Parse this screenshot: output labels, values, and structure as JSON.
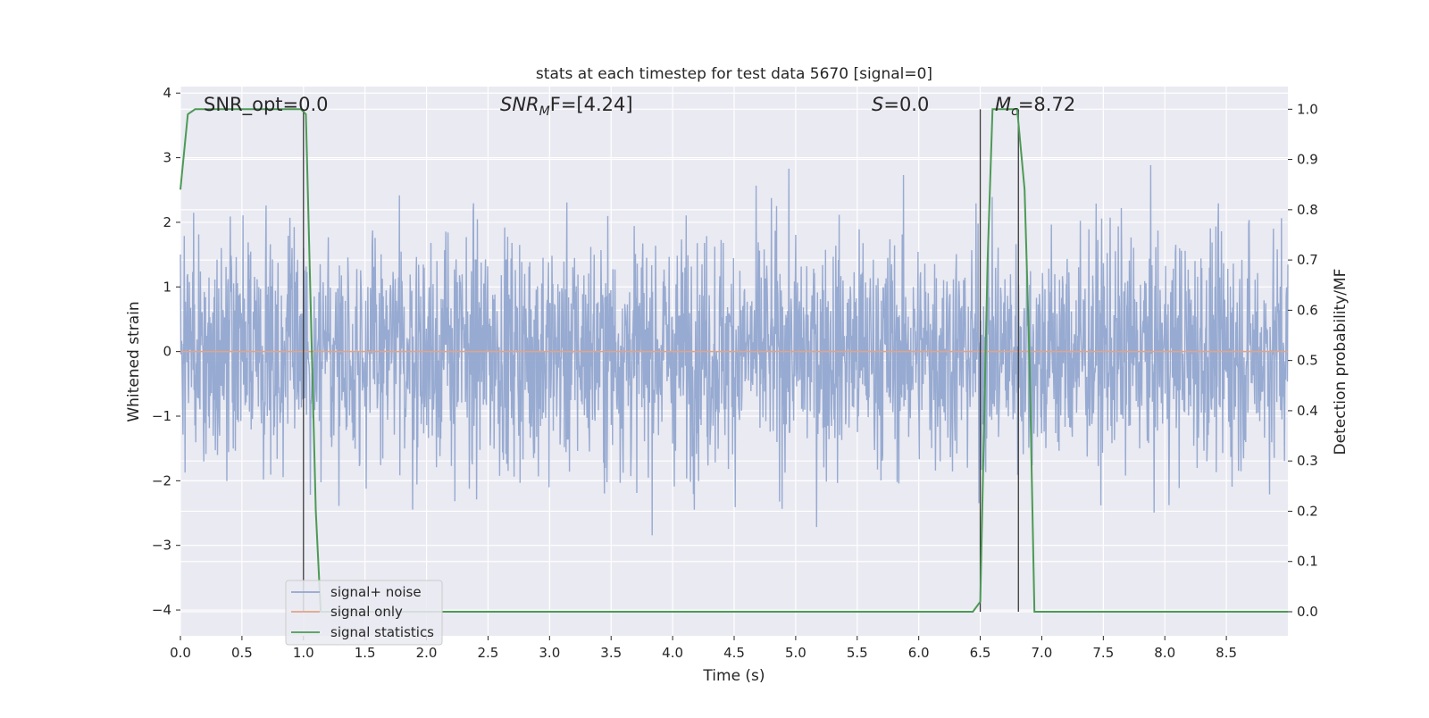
{
  "chart_data": {
    "type": "line",
    "title": "stats at each timestep for test data 5670 [signal=0]",
    "xlabel": "Time (s)",
    "ylabel_left": "Whitened strain",
    "ylabel_right": "Detection probability/MF",
    "xlim": [
      0.0,
      9.0
    ],
    "ylim_left": [
      -4.4,
      4.1
    ],
    "ylim_right": [
      -0.048,
      1.045
    ],
    "x_ticks": [
      "0.0",
      "0.5",
      "1.0",
      "1.5",
      "2.0",
      "2.5",
      "3.0",
      "3.5",
      "4.0",
      "4.5",
      "5.0",
      "5.5",
      "6.0",
      "6.5",
      "7.0",
      "7.5",
      "8.0",
      "8.5"
    ],
    "y_ticks_left": [
      "−4",
      "−3",
      "−2",
      "−1",
      "0",
      "1",
      "2",
      "3",
      "4"
    ],
    "y_ticks_right": [
      "0.0",
      "0.1",
      "0.2",
      "0.3",
      "0.4",
      "0.5",
      "0.6",
      "0.7",
      "0.8",
      "0.9",
      "1.0"
    ],
    "grid": true,
    "legend_position": "lower-left",
    "annotations": {
      "snr_opt": "SNR_opt=0.0",
      "snr_mf_main": "SNR",
      "snr_mf_sub": "M",
      "snr_mf_tail": "F=[4.24]",
      "s_main": "S",
      "s_tail": "=0.0",
      "mc_main": "M",
      "mc_sub": "c",
      "mc_tail": "=8.72"
    },
    "vertical_lines_x": [
      1.0,
      6.5,
      6.81
    ],
    "series": [
      {
        "name": "signal+ noise",
        "color": "#92a6cf",
        "description_values": "whitened noise, approx ±1.5 typical with spikes to ±3.7",
        "noise_sigma": 0.9,
        "noise_max": 3.75
      },
      {
        "name": "signal only",
        "color": "#e1a487",
        "values": [
          [
            0.0,
            0.0
          ],
          [
            9.0,
            0.0
          ]
        ]
      },
      {
        "name": "signal statistics",
        "color": "#4c9a55",
        "points": [
          [
            0.0,
            0.84
          ],
          [
            0.06,
            0.99
          ],
          [
            0.12,
            1.0
          ],
          [
            0.5,
            1.0
          ],
          [
            0.98,
            1.0
          ],
          [
            1.02,
            0.99
          ],
          [
            1.06,
            0.6
          ],
          [
            1.1,
            0.2
          ],
          [
            1.14,
            0.0
          ],
          [
            2.0,
            0.0
          ],
          [
            4.0,
            0.0
          ],
          [
            6.44,
            0.0
          ],
          [
            6.5,
            0.02
          ],
          [
            6.56,
            0.7
          ],
          [
            6.6,
            1.0
          ],
          [
            6.8,
            1.0
          ],
          [
            6.86,
            0.84
          ],
          [
            6.9,
            0.5
          ],
          [
            6.94,
            0.0
          ],
          [
            7.0,
            0.0
          ],
          [
            9.0,
            0.0
          ]
        ]
      }
    ]
  }
}
